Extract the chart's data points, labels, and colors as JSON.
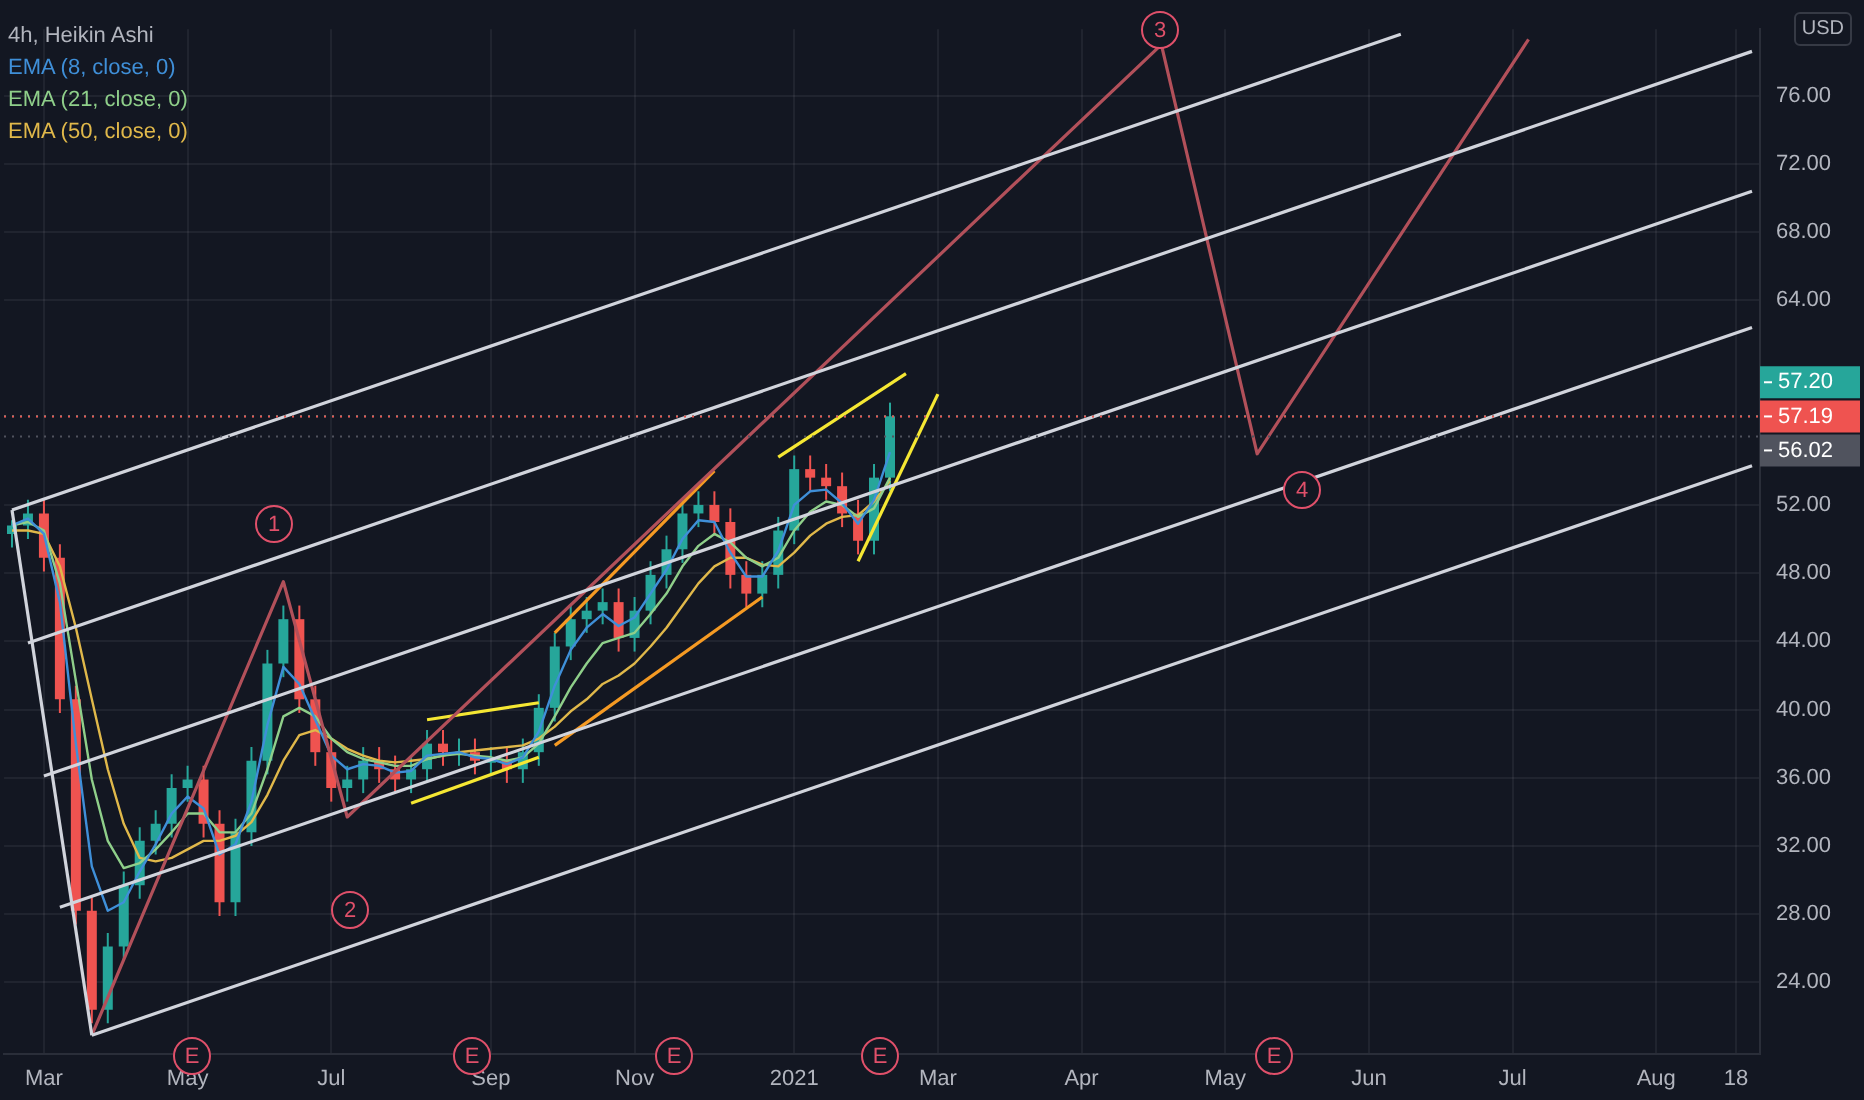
{
  "chart_data": {
    "type": "candlestick",
    "title": "4h, Heikin Ashi",
    "ylabel": "USD",
    "categories": [
      null,
      null,
      "Mar",
      null,
      null,
      null,
      null,
      null,
      null,
      null,
      null,
      "May",
      null,
      null,
      null,
      null,
      null,
      null,
      null,
      null,
      "Jul",
      null,
      null,
      null,
      null,
      null,
      null,
      null,
      null,
      null,
      "Sep",
      null,
      null,
      null,
      null,
      null,
      null,
      null,
      null,
      "Nov",
      null,
      null,
      null,
      null,
      null,
      null,
      null,
      null,
      null,
      "2021",
      null,
      null,
      null,
      null,
      null,
      null,
      null,
      null,
      "Mar",
      null,
      null,
      null,
      null,
      null,
      null,
      null,
      null,
      "Apr",
      null,
      null,
      null,
      null,
      null,
      null,
      null,
      null,
      "May",
      null,
      null,
      null,
      null,
      null,
      null,
      null,
      null,
      "Jun",
      null,
      null,
      null,
      null,
      null,
      null,
      null,
      null,
      "Jul",
      null,
      null,
      null,
      null,
      null,
      null,
      null,
      null,
      "Aug",
      null,
      null,
      null,
      null,
      "18",
      null
    ],
    "ohlc": [
      [
        50.3,
        51.1,
        49.5,
        50.8
      ],
      [
        50.8,
        52.3,
        50.0,
        51.5
      ],
      [
        51.5,
        52.3,
        48.1,
        48.9
      ],
      [
        48.9,
        49.7,
        39.8,
        40.6
      ],
      [
        40.6,
        41.4,
        27.4,
        28.2
      ],
      [
        28.2,
        29.0,
        21.6,
        22.4
      ],
      [
        22.4,
        26.9,
        21.6,
        26.1
      ],
      [
        26.1,
        30.5,
        25.3,
        29.7
      ],
      [
        29.7,
        33.1,
        28.9,
        32.3
      ],
      [
        32.3,
        34.1,
        31.5,
        33.3
      ],
      [
        33.3,
        36.2,
        32.5,
        35.4
      ],
      [
        35.4,
        36.7,
        34.6,
        35.9
      ],
      [
        35.9,
        36.7,
        32.5,
        33.3
      ],
      [
        33.3,
        34.1,
        27.9,
        28.7
      ],
      [
        28.7,
        33.6,
        27.9,
        32.8
      ],
      [
        32.8,
        37.8,
        32.0,
        37.0
      ],
      [
        37.0,
        43.5,
        36.2,
        42.7
      ],
      [
        42.7,
        46.1,
        41.9,
        45.3
      ],
      [
        45.3,
        46.1,
        39.8,
        40.6
      ],
      [
        40.6,
        41.4,
        36.7,
        37.5
      ],
      [
        37.5,
        38.3,
        34.6,
        35.4
      ],
      [
        35.4,
        36.7,
        34.6,
        35.9
      ],
      [
        35.9,
        37.8,
        35.1,
        37.0
      ],
      [
        37.0,
        37.8,
        35.7,
        36.5
      ],
      [
        36.5,
        37.3,
        35.1,
        35.9
      ],
      [
        35.9,
        37.3,
        35.1,
        36.5
      ],
      [
        36.5,
        38.8,
        35.7,
        38.0
      ],
      [
        38.0,
        38.8,
        36.7,
        37.5
      ],
      [
        37.5,
        38.3,
        36.7,
        37.5
      ],
      [
        37.5,
        38.3,
        36.2,
        37.0
      ],
      [
        37.0,
        37.8,
        36.2,
        37.0
      ],
      [
        37.0,
        37.8,
        35.7,
        36.5
      ],
      [
        36.5,
        38.3,
        35.7,
        37.5
      ],
      [
        37.5,
        40.9,
        36.7,
        40.1
      ],
      [
        40.1,
        44.5,
        39.3,
        43.7
      ],
      [
        43.7,
        46.1,
        42.9,
        45.3
      ],
      [
        45.3,
        46.6,
        44.5,
        45.8
      ],
      [
        45.8,
        47.1,
        45.0,
        46.3
      ],
      [
        46.3,
        47.1,
        43.4,
        44.2
      ],
      [
        44.2,
        46.6,
        43.4,
        45.8
      ],
      [
        45.8,
        48.7,
        45.0,
        47.9
      ],
      [
        47.9,
        50.2,
        47.1,
        49.4
      ],
      [
        49.4,
        52.3,
        48.6,
        51.5
      ],
      [
        51.5,
        52.8,
        50.7,
        52.0
      ],
      [
        52.0,
        52.8,
        50.2,
        51.0
      ],
      [
        51.0,
        51.8,
        47.1,
        47.9
      ],
      [
        47.9,
        48.7,
        46.0,
        46.8
      ],
      [
        46.8,
        48.7,
        46.0,
        47.9
      ],
      [
        47.9,
        51.3,
        47.1,
        50.5
      ],
      [
        50.5,
        54.9,
        49.7,
        54.1
      ],
      [
        54.1,
        54.9,
        52.8,
        53.6
      ],
      [
        53.6,
        54.4,
        52.3,
        53.1
      ],
      [
        53.1,
        53.9,
        50.7,
        51.5
      ],
      [
        51.5,
        52.3,
        49.1,
        49.9
      ],
      [
        49.9,
        54.4,
        49.1,
        53.6
      ],
      [
        53.6,
        58.0,
        52.8,
        57.2
      ],
      null,
      null,
      null,
      null,
      null,
      null,
      null,
      null,
      null,
      null,
      null,
      null,
      null,
      null,
      null,
      null,
      null,
      null,
      null,
      null,
      null,
      null,
      null,
      null,
      null,
      null,
      null,
      null,
      null,
      null,
      null,
      null,
      null,
      null,
      null,
      null,
      null,
      null,
      null,
      null,
      null,
      null,
      null,
      null,
      null,
      null,
      null,
      null,
      null,
      null,
      null,
      null,
      null,
      null
    ],
    "series": [
      {
        "type": "line",
        "color": "#d1d4dc",
        "values": [
          51.7,
          null,
          null,
          null,
          null,
          null,
          null,
          null,
          null,
          null,
          null,
          null,
          null,
          null,
          null,
          null,
          null,
          null,
          null,
          null,
          null,
          null,
          null,
          null,
          null,
          null,
          null,
          null,
          null,
          null,
          null,
          null,
          null,
          null,
          null,
          null,
          null,
          null,
          null,
          null,
          null,
          null,
          null,
          null,
          null,
          null,
          null,
          null,
          null,
          null,
          null,
          null,
          null,
          null,
          null,
          null,
          null,
          null,
          null,
          null,
          null,
          null,
          null,
          null,
          null,
          null,
          null,
          null,
          null,
          null,
          null,
          null,
          null,
          null,
          null,
          null,
          null,
          null,
          null,
          null,
          null,
          null,
          null,
          null,
          null,
          null,
          null,
          79.6,
          null,
          null,
          null,
          null,
          null,
          null,
          null,
          null,
          null,
          null,
          null,
          null,
          null,
          null,
          null,
          null,
          null,
          null,
          null,
          null,
          null,
          null
        ]
      },
      {
        "type": "line",
        "color": "#d1d4dc",
        "values": [
          null,
          43.9,
          null,
          null,
          null,
          null,
          null,
          null,
          null,
          null,
          null,
          null,
          null,
          null,
          null,
          null,
          null,
          null,
          null,
          null,
          null,
          null,
          null,
          null,
          null,
          null,
          null,
          null,
          null,
          null,
          null,
          null,
          null,
          null,
          null,
          null,
          null,
          null,
          null,
          null,
          null,
          null,
          null,
          null,
          null,
          null,
          null,
          null,
          null,
          null,
          null,
          null,
          null,
          null,
          null,
          null,
          null,
          null,
          null,
          null,
          null,
          null,
          null,
          null,
          null,
          null,
          null,
          null,
          null,
          null,
          null,
          null,
          null,
          null,
          null,
          null,
          null,
          null,
          null,
          null,
          null,
          null,
          null,
          null,
          null,
          null,
          null,
          null,
          null,
          null,
          null,
          null,
          null,
          null,
          null,
          null,
          null,
          null,
          null,
          null,
          null,
          null,
          null,
          null,
          null,
          null,
          null,
          null,
          null,
          78.6
        ]
      },
      {
        "type": "line",
        "color": "#d1d4dc",
        "values": [
          null,
          null,
          36.1,
          null,
          null,
          null,
          null,
          null,
          null,
          null,
          null,
          null,
          null,
          null,
          null,
          null,
          null,
          null,
          null,
          null,
          null,
          null,
          null,
          null,
          null,
          null,
          null,
          null,
          null,
          null,
          null,
          null,
          null,
          null,
          null,
          null,
          null,
          null,
          null,
          null,
          null,
          null,
          null,
          null,
          null,
          null,
          null,
          null,
          null,
          null,
          null,
          null,
          null,
          null,
          null,
          null,
          null,
          null,
          null,
          null,
          null,
          null,
          null,
          null,
          null,
          null,
          null,
          null,
          null,
          null,
          null,
          null,
          null,
          null,
          null,
          null,
          null,
          null,
          null,
          null,
          null,
          null,
          null,
          null,
          null,
          null,
          null,
          null,
          null,
          null,
          null,
          null,
          null,
          null,
          null,
          null,
          null,
          null,
          null,
          null,
          null,
          null,
          null,
          null,
          null,
          null,
          null,
          null,
          null,
          70.4
        ]
      },
      {
        "type": "line",
        "color": "#d1d4dc",
        "values": [
          null,
          null,
          null,
          28.4,
          null,
          null,
          null,
          null,
          null,
          null,
          null,
          null,
          null,
          null,
          null,
          null,
          null,
          null,
          null,
          null,
          null,
          null,
          null,
          null,
          null,
          null,
          null,
          null,
          null,
          null,
          null,
          null,
          null,
          null,
          null,
          null,
          null,
          null,
          null,
          null,
          null,
          null,
          null,
          null,
          null,
          null,
          null,
          null,
          null,
          null,
          null,
          null,
          null,
          null,
          null,
          null,
          null,
          null,
          null,
          null,
          null,
          null,
          null,
          null,
          null,
          null,
          null,
          null,
          null,
          null,
          null,
          null,
          null,
          null,
          null,
          null,
          null,
          null,
          null,
          null,
          null,
          null,
          null,
          null,
          null,
          null,
          null,
          null,
          null,
          null,
          null,
          null,
          null,
          null,
          null,
          null,
          null,
          null,
          null,
          null,
          null,
          null,
          null,
          null,
          null,
          null,
          null,
          null,
          null,
          62.4
        ]
      },
      {
        "type": "line",
        "color": "#d1d4dc",
        "values": [
          null,
          null,
          null,
          null,
          null,
          20.9,
          null,
          null,
          null,
          null,
          null,
          null,
          null,
          null,
          null,
          null,
          null,
          null,
          null,
          null,
          null,
          null,
          null,
          null,
          null,
          null,
          null,
          null,
          null,
          null,
          null,
          null,
          null,
          null,
          null,
          null,
          null,
          null,
          null,
          null,
          null,
          null,
          null,
          null,
          null,
          null,
          null,
          null,
          null,
          null,
          null,
          null,
          null,
          null,
          null,
          null,
          null,
          null,
          null,
          null,
          null,
          null,
          null,
          null,
          null,
          null,
          null,
          null,
          null,
          null,
          null,
          null,
          null,
          null,
          null,
          null,
          null,
          null,
          null,
          null,
          null,
          null,
          null,
          null,
          null,
          null,
          null,
          null,
          null,
          null,
          null,
          null,
          null,
          null,
          null,
          null,
          null,
          null,
          null,
          null,
          null,
          null,
          null,
          null,
          null,
          null,
          null,
          null,
          null,
          54.3
        ]
      },
      {
        "type": "line",
        "color": "#d1d4dc",
        "values": [
          51.7,
          null,
          null,
          null,
          null,
          20.9,
          null,
          null,
          null,
          null,
          null,
          null,
          null,
          null,
          null,
          null,
          null,
          null,
          null,
          null,
          null,
          null,
          null,
          null,
          null,
          null,
          null,
          null,
          null,
          null,
          null,
          null,
          null,
          null,
          null,
          null,
          null,
          null,
          null,
          null,
          null,
          null,
          null,
          null,
          null,
          null,
          null,
          null,
          null,
          null,
          null,
          null,
          null,
          null,
          null,
          null,
          null,
          null,
          null,
          null,
          null,
          null,
          null,
          null,
          null,
          null,
          null,
          null,
          null,
          null,
          null,
          null,
          null,
          null,
          null,
          null,
          null,
          null,
          null,
          null,
          null,
          null,
          null,
          null,
          null,
          null,
          null,
          null,
          null,
          null,
          null,
          null,
          null,
          null,
          null,
          null,
          null,
          null,
          null,
          null,
          null,
          null,
          null,
          null,
          null,
          null,
          null,
          null,
          null,
          null
        ]
      },
      {
        "type": "line",
        "color": "#b2505a",
        "values": [
          null,
          null,
          null,
          null,
          null,
          20.9,
          null,
          null,
          null,
          null,
          null,
          null,
          null,
          null,
          null,
          null,
          null,
          47.5,
          null,
          null,
          null,
          33.7,
          null,
          null,
          null,
          null,
          null,
          null,
          null,
          null,
          null,
          null,
          null,
          null,
          null,
          null,
          null,
          null,
          null,
          null,
          null,
          null,
          null,
          null,
          null,
          null,
          null,
          null,
          null,
          null,
          null,
          null,
          null,
          null,
          null,
          null,
          null,
          null,
          null,
          null,
          null,
          null,
          null,
          null,
          null,
          null,
          null,
          null,
          null,
          null,
          null,
          null,
          79.0,
          null,
          null,
          null,
          null,
          null,
          55.0,
          null,
          null,
          null,
          null,
          null,
          null,
          null,
          null,
          null,
          null,
          null,
          null,
          null,
          null,
          null,
          null,
          79.3,
          null,
          null,
          null,
          null,
          null,
          null,
          null,
          null,
          null,
          null,
          null,
          null,
          null,
          null
        ]
      },
      {
        "name": "EMA (8, close, 0)",
        "type": "line",
        "color": "#3f8fd8",
        "values": [
          50.8,
          51.2,
          50.3,
          46.3,
          38,
          30.8,
          28.2,
          28.7,
          30.5,
          32.1,
          33.9,
          34.9,
          34.2,
          31.5,
          32.1,
          34.6,
          39.1,
          42.5,
          41.5,
          39.4,
          37.3,
          36.5,
          36.8,
          36.7,
          36.3,
          36.4,
          37.3,
          37.4,
          37.5,
          37.2,
          37.1,
          36.8,
          37.2,
          38.7,
          41.4,
          43.5,
          44.8,
          45.6,
          44.9,
          45.4,
          46.8,
          48.2,
          50,
          51.1,
          51,
          49.2,
          47.8,
          47.8,
          49.3,
          52,
          52.8,
          52.9,
          52.1,
          50.9,
          52.3,
          55.1,
          null,
          null,
          null,
          null,
          null,
          null,
          null,
          null,
          null,
          null,
          null,
          null,
          null,
          null,
          null,
          null,
          null,
          null,
          null,
          null,
          null,
          null,
          null,
          null,
          null,
          null,
          null,
          null,
          null,
          null,
          null,
          null,
          null,
          null,
          null,
          null,
          null,
          null,
          null,
          null,
          null,
          null,
          null,
          null,
          null,
          null,
          null,
          null,
          null,
          null,
          null,
          null,
          null,
          null
        ]
      },
      {
        "name": "EMA (21, close, 0)",
        "type": "line",
        "color": "#8fcf8a",
        "values": [
          50.8,
          51,
          50.5,
          47.4,
          41.7,
          35.9,
          32.3,
          30.7,
          31,
          31.8,
          32.8,
          33.9,
          33.9,
          32.8,
          32.8,
          33.9,
          36.5,
          39.6,
          40.1,
          39.6,
          38.3,
          37.5,
          37.1,
          36.9,
          36.7,
          36.7,
          37.1,
          37.3,
          37.4,
          37.3,
          37.2,
          37,
          37.2,
          38,
          39.6,
          41.3,
          42.7,
          43.9,
          44.2,
          44.5,
          45.6,
          46.8,
          48.4,
          49.6,
          50.3,
          49.8,
          48.9,
          48.4,
          48.9,
          50.5,
          51.6,
          52.2,
          52,
          51.3,
          51.8,
          53.6,
          null,
          null,
          null,
          null,
          null,
          null,
          null,
          null,
          null,
          null,
          null,
          null,
          null,
          null,
          null,
          null,
          null,
          null,
          null,
          null,
          null,
          null,
          null,
          null,
          null,
          null,
          null,
          null,
          null,
          null,
          null,
          null,
          null,
          null,
          null,
          null,
          null,
          null,
          null,
          null,
          null,
          null,
          null,
          null,
          null,
          null,
          null,
          null,
          null,
          null,
          null,
          null,
          null,
          null
        ]
      },
      {
        "name": "EMA (50, close, 0)",
        "type": "line",
        "color": "#e0b84a",
        "values": [
          50.5,
          50.5,
          50.3,
          48.4,
          44.8,
          40.6,
          36.5,
          33.3,
          31.3,
          31.1,
          31.3,
          31.8,
          32.3,
          32.3,
          32.6,
          33.4,
          35,
          37,
          38.5,
          38.8,
          38.3,
          37.7,
          37.3,
          37,
          36.9,
          37,
          37.1,
          37.3,
          37.5,
          37.6,
          37.7,
          37.8,
          37.9,
          38.3,
          39,
          39.9,
          40.6,
          41.5,
          42,
          42.7,
          43.7,
          44.8,
          46.1,
          47.4,
          48.4,
          48.9,
          48.9,
          48.5,
          48.4,
          49.2,
          50.2,
          50.9,
          51.3,
          51.4,
          52.2,
          53.4,
          null,
          null,
          null,
          null,
          null,
          null,
          null,
          null,
          null,
          null,
          null,
          null,
          null,
          null,
          null,
          null,
          null,
          null,
          null,
          null,
          null,
          null,
          null,
          null,
          null,
          null,
          null,
          null,
          null,
          null,
          null,
          null,
          null,
          null,
          null,
          null,
          null,
          null,
          null,
          null,
          null,
          null,
          null,
          null,
          null,
          null,
          null,
          null,
          null,
          null,
          null,
          null,
          null,
          null
        ]
      },
      {
        "type": "line",
        "color": "#f5e733",
        "values": [
          null,
          null,
          null,
          null,
          null,
          null,
          null,
          null,
          null,
          null,
          null,
          null,
          null,
          null,
          null,
          null,
          null,
          null,
          null,
          null,
          null,
          null,
          null,
          null,
          null,
          null,
          39.4,
          null,
          null,
          null,
          null,
          null,
          null,
          40.4,
          null,
          null,
          null,
          null,
          null,
          null,
          null,
          null,
          null,
          null,
          null,
          null,
          null,
          null,
          null,
          null,
          null,
          null,
          null,
          null,
          null,
          null,
          null,
          null,
          null,
          null,
          null,
          null,
          null,
          null,
          null,
          null,
          null,
          null,
          null,
          null,
          null,
          null,
          null,
          null,
          null,
          null,
          null,
          null,
          null,
          null,
          null,
          null,
          null,
          null,
          null,
          null,
          null,
          null,
          null,
          null,
          null,
          null,
          null,
          null,
          null,
          null,
          null,
          null,
          null,
          null,
          null,
          null,
          null,
          null,
          null,
          null,
          null,
          null,
          null,
          null
        ]
      },
      {
        "type": "line",
        "color": "#f5e733",
        "values": [
          null,
          null,
          null,
          null,
          null,
          null,
          null,
          null,
          null,
          null,
          null,
          null,
          null,
          null,
          null,
          null,
          null,
          null,
          null,
          null,
          null,
          null,
          null,
          null,
          null,
          34.5,
          null,
          null,
          null,
          null,
          null,
          null,
          null,
          37.2,
          null,
          null,
          null,
          null,
          null,
          null,
          null,
          null,
          null,
          null,
          null,
          null,
          null,
          null,
          null,
          null,
          null,
          null,
          null,
          null,
          null,
          null,
          null,
          null,
          null,
          null,
          null,
          null,
          null,
          null,
          null,
          null,
          null,
          null,
          null,
          null,
          null,
          null,
          null,
          null,
          null,
          null,
          null,
          null,
          null,
          null,
          null,
          null,
          null,
          null,
          null,
          null,
          null,
          null,
          null,
          null,
          null,
          null,
          null,
          null,
          null,
          null,
          null,
          null,
          null,
          null,
          null,
          null,
          null,
          null,
          null,
          null,
          null,
          null,
          null,
          null
        ]
      },
      {
        "type": "line",
        "color": "#f59a23",
        "values": [
          null,
          null,
          null,
          null,
          null,
          null,
          null,
          null,
          null,
          null,
          null,
          null,
          null,
          null,
          null,
          null,
          null,
          null,
          null,
          null,
          null,
          null,
          null,
          null,
          null,
          null,
          null,
          null,
          null,
          null,
          null,
          null,
          null,
          null,
          44.5,
          null,
          null,
          null,
          null,
          null,
          null,
          null,
          null,
          null,
          54.0,
          null,
          null,
          null,
          null,
          null,
          null,
          null,
          null,
          null,
          null,
          null,
          null,
          null,
          null,
          null,
          null,
          null,
          null,
          null,
          null,
          null,
          null,
          null,
          null,
          null,
          null,
          null,
          null,
          null,
          null,
          null,
          null,
          null,
          null,
          null,
          null,
          null,
          null,
          null,
          null,
          null,
          null,
          null,
          null,
          null,
          null,
          null,
          null,
          null,
          null,
          null,
          null,
          null,
          null,
          null,
          null,
          null,
          null,
          null,
          null,
          null,
          null,
          null,
          null,
          null
        ]
      },
      {
        "type": "line",
        "color": "#f59a23",
        "values": [
          null,
          null,
          null,
          null,
          null,
          null,
          null,
          null,
          null,
          null,
          null,
          null,
          null,
          null,
          null,
          null,
          null,
          null,
          null,
          null,
          null,
          null,
          null,
          null,
          null,
          null,
          null,
          null,
          null,
          null,
          null,
          null,
          null,
          null,
          37.9,
          null,
          null,
          null,
          null,
          null,
          null,
          null,
          null,
          null,
          null,
          null,
          null,
          46.6,
          null,
          null,
          null,
          null,
          null,
          null,
          null,
          null,
          null,
          null,
          null,
          null,
          null,
          null,
          null,
          null,
          null,
          null,
          null,
          null,
          null,
          null,
          null,
          null,
          null,
          null,
          null,
          null,
          null,
          null,
          null,
          null,
          null,
          null,
          null,
          null,
          null,
          null,
          null,
          null,
          null,
          null,
          null,
          null,
          null,
          null,
          null,
          null,
          null,
          null,
          null,
          null,
          null,
          null,
          null,
          null,
          null,
          null,
          null,
          null,
          null,
          null
        ]
      },
      {
        "type": "line",
        "color": "#f5e733",
        "values": [
          null,
          null,
          null,
          null,
          null,
          null,
          null,
          null,
          null,
          null,
          null,
          null,
          null,
          null,
          null,
          null,
          null,
          null,
          null,
          null,
          null,
          null,
          null,
          null,
          null,
          null,
          null,
          null,
          null,
          null,
          null,
          null,
          null,
          null,
          null,
          null,
          null,
          null,
          null,
          null,
          null,
          null,
          null,
          null,
          null,
          null,
          null,
          null,
          54.8,
          null,
          null,
          null,
          null,
          null,
          null,
          null,
          59.7,
          null,
          null,
          null,
          null,
          null,
          null,
          null,
          null,
          null,
          null,
          null,
          null,
          null,
          null,
          null,
          null,
          null,
          null,
          null,
          null,
          null,
          null,
          null,
          null,
          null,
          null,
          null,
          null,
          null,
          null,
          null,
          null,
          null,
          null,
          null,
          null,
          null,
          null,
          null,
          null,
          null,
          null,
          null,
          null,
          null,
          null,
          null,
          null,
          null,
          null,
          null,
          null,
          null
        ]
      },
      {
        "type": "line",
        "color": "#f5e733",
        "values": [
          null,
          null,
          null,
          null,
          null,
          null,
          null,
          null,
          null,
          null,
          null,
          null,
          null,
          null,
          null,
          null,
          null,
          null,
          null,
          null,
          null,
          null,
          null,
          null,
          null,
          null,
          null,
          null,
          null,
          null,
          null,
          null,
          null,
          null,
          null,
          null,
          null,
          null,
          null,
          null,
          null,
          null,
          null,
          null,
          null,
          null,
          null,
          null,
          null,
          null,
          null,
          null,
          null,
          48.7,
          null,
          null,
          null,
          null,
          58.5,
          null,
          null,
          null,
          null,
          null,
          null,
          null,
          null,
          null,
          null,
          null,
          null,
          null,
          null,
          null,
          null,
          null,
          null,
          null,
          null,
          null,
          null,
          null,
          null,
          null,
          null,
          null,
          null,
          null,
          null,
          null,
          null,
          null,
          null,
          null,
          null,
          null,
          null,
          null,
          null,
          null,
          null,
          null,
          null,
          null,
          null,
          null,
          null,
          null,
          null,
          null
        ]
      }
    ],
    "ylim": [
      19.8,
      79.9
    ],
    "yticks": [
      {
        "value": 24,
        "label": "24.00"
      },
      {
        "value": 28,
        "label": "28.00"
      },
      {
        "value": 32,
        "label": "32.00"
      },
      {
        "value": 36,
        "label": "36.00"
      },
      {
        "value": 40,
        "label": "40.00"
      },
      {
        "value": 44,
        "label": "44.00"
      },
      {
        "value": 48,
        "label": "48.00"
      },
      {
        "value": 52,
        "label": "52.00"
      },
      {
        "value": 64,
        "label": "64.00"
      },
      {
        "value": 68,
        "label": "68.00"
      },
      {
        "value": 72,
        "label": "72.00"
      },
      {
        "value": 76,
        "label": "76.00"
      }
    ],
    "ref_lines": [
      {
        "axis": "y",
        "value": 57.2,
        "label": "57.20",
        "color": "#26a69a"
      },
      {
        "axis": "y",
        "value": 57.19,
        "label": "57.19",
        "color": "#ef5350"
      },
      {
        "axis": "y",
        "value": 56.02,
        "label": "56.02",
        "color": "#50535e"
      }
    ],
    "annotations": [
      "1",
      "2",
      "3",
      "4",
      "E",
      "E",
      "E",
      "E",
      "E"
    ],
    "grid": true,
    "legend": "top left",
    "marker": "none"
  }
}
